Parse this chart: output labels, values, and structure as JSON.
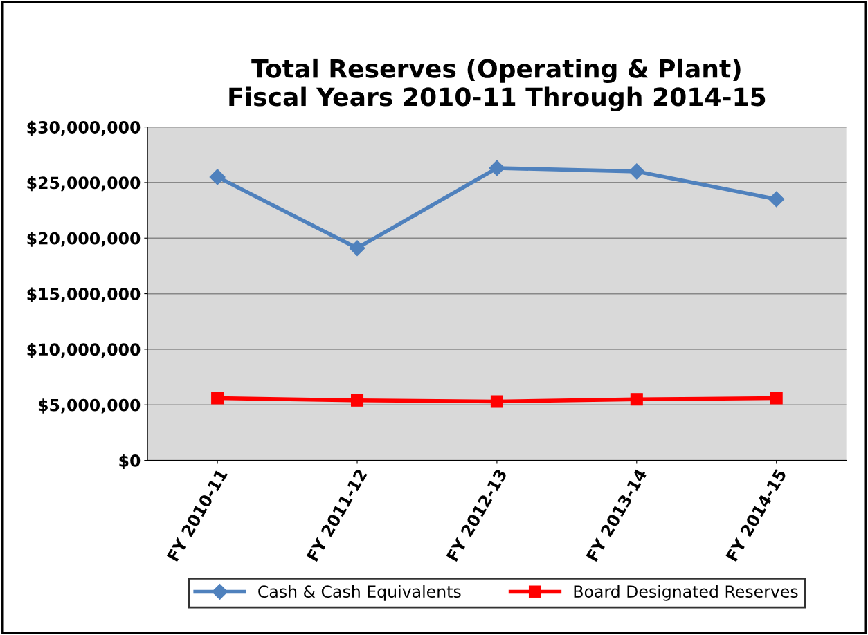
{
  "chart_data": {
    "type": "line",
    "title": "Total Reserves (Operating & Plant)\nFiscal Years 2010-11 Through 2014-15",
    "categories": [
      "FY 2010-11",
      "FY 2011-12",
      "FY 2012-13",
      "FY 2013-14",
      "FY 2014-15"
    ],
    "series": [
      {
        "name": "Cash & Cash Equivalents",
        "color": "#4f81bd",
        "marker": "diamond",
        "values": [
          25500000,
          19100000,
          26300000,
          26000000,
          23500000
        ]
      },
      {
        "name": "Board Designated Reserves",
        "color": "#ff0000",
        "marker": "square",
        "values": [
          5600000,
          5400000,
          5300000,
          5500000,
          5600000
        ]
      }
    ],
    "ylim": [
      0,
      30000000
    ],
    "yticks": [
      {
        "value": 0,
        "label": "$0"
      },
      {
        "value": 5000000,
        "label": "$5,000,000"
      },
      {
        "value": 10000000,
        "label": "$10,000,000"
      },
      {
        "value": 15000000,
        "label": "$15,000,000"
      },
      {
        "value": 20000000,
        "label": "$20,000,000"
      },
      {
        "value": 25000000,
        "label": "$25,000,000"
      },
      {
        "value": 30000000,
        "label": "$30,000,000"
      }
    ],
    "grid": "y",
    "legend": "bottom",
    "line_style": "solid"
  }
}
